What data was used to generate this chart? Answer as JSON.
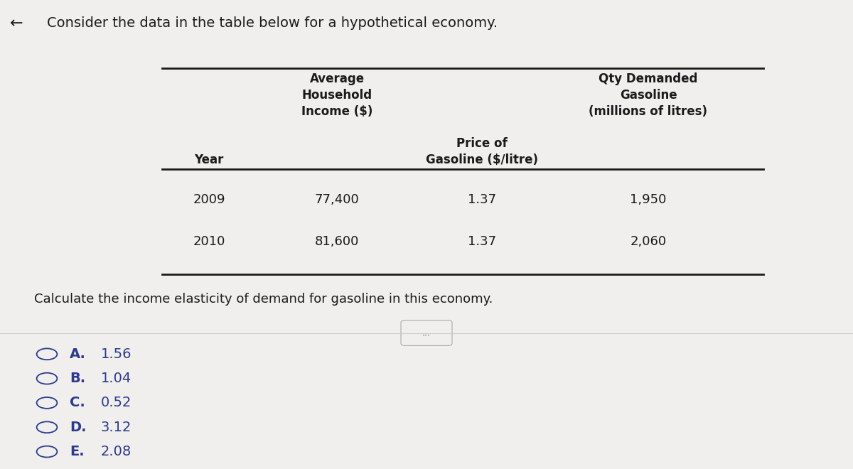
{
  "title": "Consider the data in the table below for a hypothetical economy.",
  "table_data": [
    [
      "2009",
      "77,400",
      "1.37",
      "1,950"
    ],
    [
      "2010",
      "81,600",
      "1.37",
      "2,060"
    ]
  ],
  "question": "Calculate the income elasticity of demand for gasoline in this economy.",
  "options": [
    [
      "A.",
      "1.56"
    ],
    [
      "B.",
      "1.04"
    ],
    [
      "C.",
      "0.52"
    ],
    [
      "D.",
      "3.12"
    ],
    [
      "E.",
      "2.08"
    ]
  ],
  "bg_color": "#f0efed",
  "text_color": "#1a1a1a",
  "option_color": "#2d3a8c",
  "font_size_title": 14,
  "font_size_table_header": 12,
  "font_size_table_data": 13,
  "font_size_question": 13,
  "font_size_options": 14
}
